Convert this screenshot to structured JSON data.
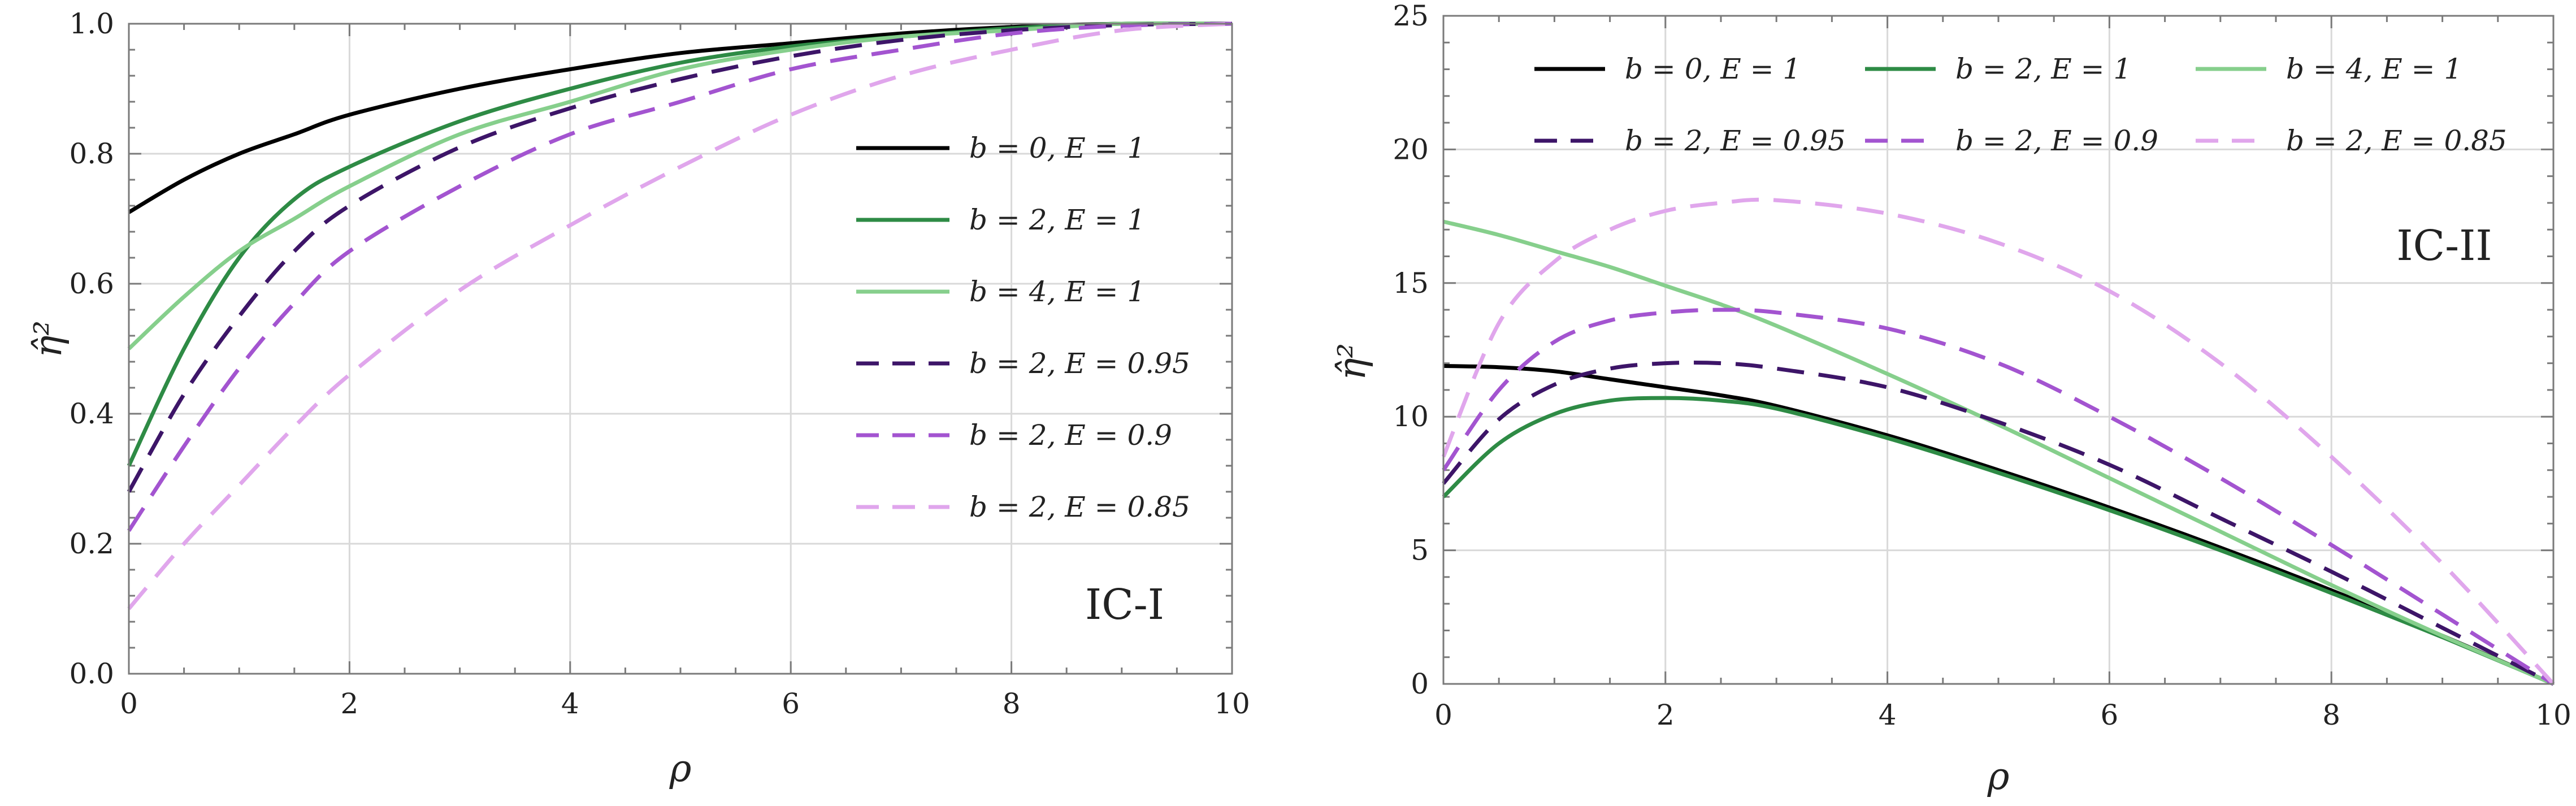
{
  "chart_data": [
    {
      "type": "line",
      "panel": "left",
      "annotation": "IC-I",
      "xlabel": "ρ",
      "ylabel": "η̂²",
      "xlim": [
        0,
        10
      ],
      "ylim": [
        0,
        1.0
      ],
      "xticks": [
        0,
        2,
        4,
        6,
        8,
        10
      ],
      "xtick_labels": [
        "0",
        "2",
        "4",
        "6",
        "8",
        "10"
      ],
      "yticks": [
        0,
        0.2,
        0.4,
        0.6,
        0.8,
        1.0
      ],
      "ytick_labels": [
        "0.0",
        "0.2",
        "0.4",
        "0.6",
        "0.8",
        "1.0"
      ],
      "grid": true,
      "legend_position": "right",
      "x": [
        0,
        0.5,
        1,
        1.5,
        2,
        3,
        4,
        5,
        6,
        7,
        8,
        9,
        10
      ],
      "series": [
        {
          "name": "b = 0,  E = 1",
          "color": "#000000",
          "dash": "solid",
          "values": [
            0.71,
            0.76,
            0.8,
            0.83,
            0.86,
            0.9,
            0.93,
            0.955,
            0.97,
            0.985,
            0.995,
            1.0,
            1.0
          ]
        },
        {
          "name": "b = 2,  E = 1",
          "color": "#2e8b45",
          "dash": "solid",
          "values": [
            0.32,
            0.5,
            0.64,
            0.73,
            0.78,
            0.85,
            0.9,
            0.94,
            0.965,
            0.98,
            0.993,
            1.0,
            1.0
          ]
        },
        {
          "name": "b = 4,  E = 1",
          "color": "#86cf8c",
          "dash": "solid",
          "values": [
            0.5,
            0.58,
            0.65,
            0.7,
            0.75,
            0.83,
            0.88,
            0.93,
            0.96,
            0.98,
            0.99,
            1.0,
            1.0
          ]
        },
        {
          "name": "b = 2,  E = 0.95",
          "color": "#3d1568",
          "dash": "dashed",
          "values": [
            0.28,
            0.43,
            0.55,
            0.65,
            0.72,
            0.81,
            0.87,
            0.915,
            0.95,
            0.975,
            0.99,
            0.998,
            1.0
          ]
        },
        {
          "name": "b = 2,  E = 0.9",
          "color": "#a354d0",
          "dash": "dashed",
          "values": [
            0.22,
            0.35,
            0.47,
            0.57,
            0.65,
            0.75,
            0.83,
            0.88,
            0.93,
            0.96,
            0.985,
            0.997,
            1.0
          ]
        },
        {
          "name": "b = 2,  E = 0.85",
          "color": "#e0a6ec",
          "dash": "dashed",
          "values": [
            0.1,
            0.2,
            0.29,
            0.38,
            0.46,
            0.59,
            0.69,
            0.78,
            0.86,
            0.92,
            0.96,
            0.99,
            1.0
          ]
        }
      ]
    },
    {
      "type": "line",
      "panel": "right",
      "annotation": "IC-II",
      "xlabel": "ρ",
      "ylabel": "η̂²",
      "xlim": [
        0,
        10
      ],
      "ylim": [
        0,
        25
      ],
      "xticks": [
        0,
        2,
        4,
        6,
        8,
        10
      ],
      "xtick_labels": [
        "0",
        "2",
        "4",
        "6",
        "8",
        "10"
      ],
      "yticks": [
        0,
        5,
        10,
        15,
        20,
        25
      ],
      "ytick_labels": [
        "0",
        "5",
        "10",
        "15",
        "20",
        "25"
      ],
      "grid": true,
      "legend_position": "top",
      "x": [
        0,
        0.5,
        1,
        1.5,
        2,
        2.5,
        3,
        4,
        5,
        6,
        7,
        8,
        9,
        10
      ],
      "series": [
        {
          "name": "b = 0,  E = 1",
          "color": "#000000",
          "dash": "solid",
          "values": [
            11.9,
            11.85,
            11.7,
            11.4,
            11.1,
            10.8,
            10.4,
            9.3,
            8.0,
            6.6,
            5.1,
            3.5,
            1.8,
            0
          ]
        },
        {
          "name": "b = 2,  E = 1",
          "color": "#2e8b45",
          "dash": "solid",
          "values": [
            7.0,
            9.0,
            10.1,
            10.6,
            10.7,
            10.6,
            10.3,
            9.2,
            7.9,
            6.5,
            5.0,
            3.4,
            1.75,
            0
          ]
        },
        {
          "name": "b = 4,  E = 1",
          "color": "#86cf8c",
          "dash": "solid",
          "values": [
            17.3,
            16.8,
            16.2,
            15.6,
            14.9,
            14.2,
            13.4,
            11.6,
            9.7,
            7.7,
            5.7,
            3.7,
            1.8,
            0
          ]
        },
        {
          "name": "b = 2,  E = 0.95",
          "color": "#3d1568",
          "dash": "dashed",
          "values": [
            7.5,
            9.9,
            11.2,
            11.8,
            12.0,
            12.0,
            11.8,
            11.1,
            9.8,
            8.2,
            6.2,
            4.2,
            2.1,
            0
          ]
        },
        {
          "name": "b = 2,  E = 0.9",
          "color": "#a354d0",
          "dash": "dashed",
          "values": [
            8.0,
            11.0,
            12.8,
            13.6,
            13.9,
            14.0,
            13.9,
            13.3,
            12.0,
            10.0,
            7.7,
            5.2,
            2.6,
            0
          ]
        },
        {
          "name": "b = 2,  E = 0.85",
          "color": "#e0a6ec",
          "dash": "dashed",
          "values": [
            8.5,
            13.5,
            15.8,
            17.0,
            17.7,
            18.0,
            18.1,
            17.6,
            16.5,
            14.7,
            12.0,
            8.5,
            4.5,
            0
          ]
        }
      ]
    }
  ]
}
